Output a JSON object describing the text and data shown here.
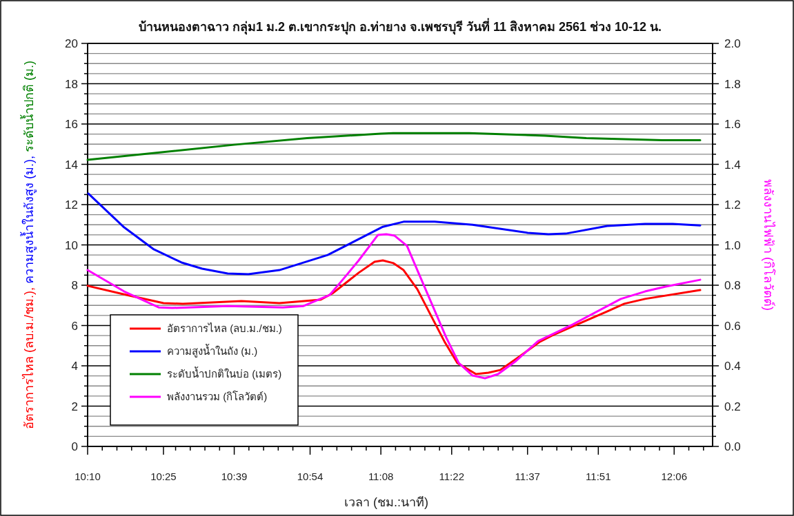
{
  "chart_data": {
    "type": "line",
    "title": "บ้านหนองตาฉาว กลุ่ม1 ม.2 ต.เขากระปุก อ.ท่ายาง จ.เพชรบุรี วันที่ 11 สิงหาคม 2561 ช่วง 10-12 น.",
    "xlabel": "เวลา (ชม.:นาที)",
    "ylabel": "อัตราการไหล (ลบ.ม./ชม.), ความสูงน้ำในถังสูง (ม.), ระดับน้ำปกติ (ม.)",
    "y2label": "พลังงานไฟฟ้า (กิโลวัตต์)",
    "xlim": [
      10.1667,
      12.2267
    ],
    "xticks": [
      {
        "value": 10.1667,
        "label": "10:10"
      },
      {
        "value": 10.215,
        "label": null
      },
      {
        "value": 10.2633,
        "label": null
      },
      {
        "value": 10.3117,
        "label": null
      },
      {
        "value": 10.36,
        "label": null
      },
      {
        "value": 10.4167,
        "label": "10:25"
      },
      {
        "value": 10.4567,
        "label": null
      },
      {
        "value": 10.505,
        "label": null
      },
      {
        "value": 10.5533,
        "label": null
      },
      {
        "value": 10.6017,
        "label": null
      },
      {
        "value": 10.65,
        "label": "10:39"
      },
      {
        "value": 10.6983,
        "label": null
      },
      {
        "value": 10.7467,
        "label": null
      },
      {
        "value": 10.795,
        "label": null
      },
      {
        "value": 10.8433,
        "label": null
      },
      {
        "value": 10.9,
        "label": "10:54"
      },
      {
        "value": 10.94,
        "label": null
      },
      {
        "value": 10.9883,
        "label": null
      },
      {
        "value": 11.0367,
        "label": null
      },
      {
        "value": 11.085,
        "label": null
      },
      {
        "value": 11.1333,
        "label": "11:08"
      },
      {
        "value": 11.1817,
        "label": null
      },
      {
        "value": 11.23,
        "label": null
      },
      {
        "value": 11.2783,
        "label": null
      },
      {
        "value": 11.3267,
        "label": null
      },
      {
        "value": 11.3667,
        "label": "11:22"
      },
      {
        "value": 11.4233,
        "label": null
      },
      {
        "value": 11.4717,
        "label": null
      },
      {
        "value": 11.52,
        "label": null
      },
      {
        "value": 11.5683,
        "label": null
      },
      {
        "value": 11.6167,
        "label": "11:37"
      },
      {
        "value": 11.665,
        "label": null
      },
      {
        "value": 11.7133,
        "label": null
      },
      {
        "value": 11.7617,
        "label": null
      },
      {
        "value": 11.81,
        "label": null
      },
      {
        "value": 11.85,
        "label": "11:51"
      },
      {
        "value": 11.9067,
        "label": null
      },
      {
        "value": 11.955,
        "label": null
      },
      {
        "value": 12.0033,
        "label": null
      },
      {
        "value": 12.0517,
        "label": null
      },
      {
        "value": 12.1,
        "label": "12:06"
      },
      {
        "value": 12.1483,
        "label": null
      },
      {
        "value": 12.1967,
        "label": null
      }
    ],
    "ylim": [
      0,
      20
    ],
    "yticks": [
      0,
      {
        "value": 0.5,
        "label": null
      },
      {
        "value": 1,
        "label": null
      },
      {
        "value": 1.5,
        "label": null
      },
      2,
      {
        "value": 2.5,
        "label": null
      },
      {
        "value": 3,
        "label": null
      },
      {
        "value": 3.5,
        "label": null
      },
      4,
      {
        "value": 4.5,
        "label": null
      },
      {
        "value": 5,
        "label": null
      },
      {
        "value": 5.5,
        "label": null
      },
      6,
      {
        "value": 6.5,
        "label": null
      },
      {
        "value": 7,
        "label": null
      },
      {
        "value": 7.5,
        "label": null
      },
      8,
      {
        "value": 8.5,
        "label": null
      },
      {
        "value": 9,
        "label": null
      },
      {
        "value": 9.5,
        "label": null
      },
      10,
      {
        "value": 10.5,
        "label": null
      },
      {
        "value": 11,
        "label": null
      },
      {
        "value": 11.5,
        "label": null
      },
      12,
      {
        "value": 12.5,
        "label": null
      },
      {
        "value": 13,
        "label": null
      },
      {
        "value": 13.5,
        "label": null
      },
      14,
      {
        "value": 14.5,
        "label": null
      },
      {
        "value": 15,
        "label": null
      },
      {
        "value": 15.5,
        "label": null
      },
      16,
      {
        "value": 16.5,
        "label": null
      },
      {
        "value": 17,
        "label": null
      },
      {
        "value": 17.5,
        "label": null
      },
      18,
      {
        "value": 18.5,
        "label": null
      },
      {
        "value": 19,
        "label": null
      },
      {
        "value": 19.5,
        "label": null
      },
      20
    ],
    "y2lim": [
      0,
      2
    ],
    "y2ticks": [
      {
        "value": 0,
        "label": "0.0"
      },
      {
        "value": 0.05,
        "label": null
      },
      {
        "value": 0.1,
        "label": null
      },
      {
        "value": 0.15,
        "label": null
      },
      {
        "value": 0.2,
        "label": "0.2"
      },
      {
        "value": 0.25,
        "label": null
      },
      {
        "value": 0.3,
        "label": null
      },
      {
        "value": 0.35,
        "label": null
      },
      {
        "value": 0.4,
        "label": "0.4"
      },
      {
        "value": 0.45,
        "label": null
      },
      {
        "value": 0.5,
        "label": null
      },
      {
        "value": 0.55,
        "label": null
      },
      {
        "value": 0.6,
        "label": "0.6"
      },
      {
        "value": 0.65,
        "label": null
      },
      {
        "value": 0.7,
        "label": null
      },
      {
        "value": 0.75,
        "label": null
      },
      {
        "value": 0.8,
        "label": "0.8"
      },
      {
        "value": 0.85,
        "label": null
      },
      {
        "value": 0.9,
        "label": null
      },
      {
        "value": 0.95,
        "label": null
      },
      {
        "value": 1,
        "label": "1.0"
      },
      {
        "value": 1.05,
        "label": null
      },
      {
        "value": 1.1,
        "label": null
      },
      {
        "value": 1.15,
        "label": null
      },
      {
        "value": 1.2,
        "label": "1.2"
      },
      {
        "value": 1.25,
        "label": null
      },
      {
        "value": 1.3,
        "label": null
      },
      {
        "value": 1.35,
        "label": null
      },
      {
        "value": 1.4,
        "label": "1.4"
      },
      {
        "value": 1.45,
        "label": null
      },
      {
        "value": 1.5,
        "label": null
      },
      {
        "value": 1.55,
        "label": null
      },
      {
        "value": 1.6,
        "label": "1.6"
      },
      {
        "value": 1.65,
        "label": null
      },
      {
        "value": 1.7,
        "label": null
      },
      {
        "value": 1.75,
        "label": null
      },
      {
        "value": 1.8,
        "label": "1.8"
      },
      {
        "value": 1.85,
        "label": null
      },
      {
        "value": 1.9,
        "label": null
      },
      {
        "value": 1.95,
        "label": null
      },
      {
        "value": 2,
        "label": "2.0"
      }
    ],
    "grid": "y",
    "legend": "bottom left",
    "line_style": "solid",
    "series": [
      {
        "name": "อัตราการไหล (ลบ.ม./ชม.)",
        "color": "#ff0000",
        "x": [
          10.1667,
          10.294,
          10.4168,
          10.4805,
          10.6738,
          10.7988,
          10.9352,
          10.9762,
          11.0603,
          11.1126,
          11.1398,
          11.1739,
          11.2081,
          11.2535,
          11.3445,
          11.3854,
          11.4468,
          11.4877,
          11.5264,
          11.5878,
          11.6583,
          11.697,
          11.7652,
          11.8789,
          11.9357,
          12.0039,
          12.1858
        ],
        "values": [
          7.97,
          7.52,
          7.11,
          7.08,
          7.21,
          7.11,
          7.28,
          7.62,
          8.62,
          9.16,
          9.23,
          9.1,
          8.75,
          7.8,
          5.16,
          4.14,
          3.59,
          3.66,
          3.79,
          4.44,
          5.2,
          5.5,
          5.95,
          6.7,
          7.08,
          7.32,
          7.76
        ]
      },
      {
        "name": "ความสูงน้ำในถัง (ม.)",
        "color": "#0000ff",
        "x": [
          10.1689,
          10.2872,
          10.385,
          10.4759,
          10.5441,
          10.6283,
          10.6965,
          10.7988,
          10.958,
          11.1398,
          11.2081,
          11.3104,
          11.4354,
          11.6173,
          11.6856,
          11.7425,
          11.8789,
          12.0039,
          12.0948,
          12.1858
        ],
        "values": [
          12.55,
          10.87,
          9.78,
          9.13,
          8.82,
          8.58,
          8.55,
          8.75,
          9.5,
          10.9,
          11.15,
          11.15,
          11.0,
          10.6,
          10.53,
          10.56,
          10.94,
          11.04,
          11.04,
          10.97
        ]
      },
      {
        "name": "ระดับน้ำปกติในบ่อ (เมตร)",
        "color": "#008000",
        "x": [
          10.1667,
          10.6487,
          10.8898,
          11.133,
          11.1739,
          11.4241,
          11.6742,
          11.8106,
          12.0607,
          12.1858
        ],
        "values": [
          14.22,
          14.97,
          15.3,
          15.52,
          15.55,
          15.55,
          15.42,
          15.3,
          15.2,
          15.2
        ]
      },
      {
        "name": "พลังงานรวม (กิโลวัตต์)",
        "color": "#ff00ff",
        "axis": "y2",
        "x": [
          10.1667,
          10.2872,
          10.4009,
          10.4464,
          10.6283,
          10.8102,
          10.8784,
          10.9648,
          11.0034,
          11.0603,
          11.1239,
          11.1512,
          11.1785,
          11.2194,
          11.2535,
          11.349,
          11.39,
          11.4354,
          11.4764,
          11.5196,
          11.5787,
          11.6515,
          11.7652,
          11.9243,
          12.0039,
          12.0721,
          12.1858
        ],
        "values": [
          0.875,
          0.769,
          0.69,
          0.687,
          0.697,
          0.69,
          0.697,
          0.752,
          0.82,
          0.923,
          1.05,
          1.053,
          1.046,
          0.995,
          0.875,
          0.54,
          0.414,
          0.352,
          0.338,
          0.359,
          0.424,
          0.523,
          0.605,
          0.732,
          0.769,
          0.793,
          0.827
        ]
      }
    ]
  }
}
